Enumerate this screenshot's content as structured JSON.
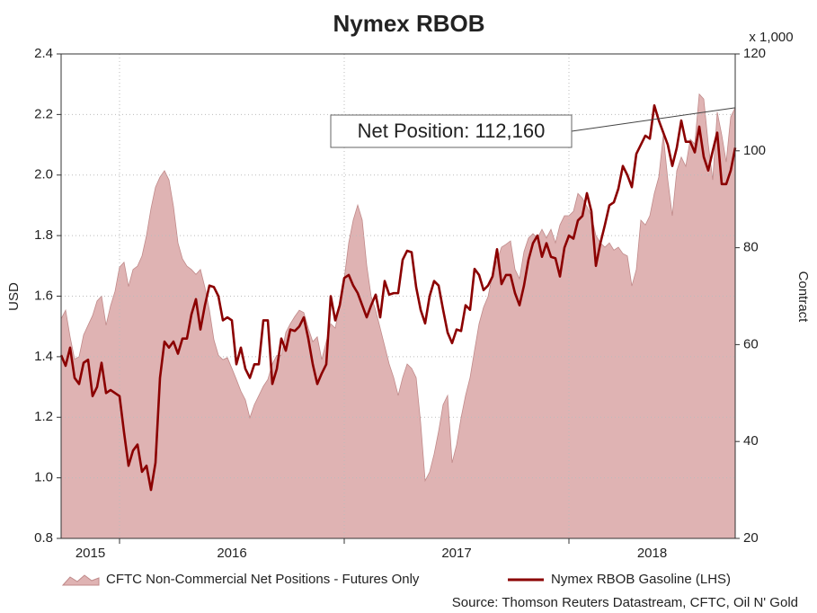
{
  "chart_data": {
    "type": "line",
    "title": "Nymex RBOB",
    "ylabel": "USD",
    "y2label": "Contract",
    "y2unit": "x 1,000",
    "source": "Source: Thomson Reuters Datastream, CFTC, Oil N' Gold",
    "annotation": "Net Position: 112,160",
    "grid": true,
    "xlim": [
      2015.74,
      2018.74
    ],
    "xticks": [
      {
        "value": 2015.87,
        "label": "2015"
      },
      {
        "value": 2016.5,
        "label": "2016"
      },
      {
        "value": 2017.5,
        "label": "2017"
      },
      {
        "value": 2018.37,
        "label": "2018"
      }
    ],
    "xminorticks": [
      2016,
      2017,
      2018
    ],
    "ylim": [
      0.8,
      2.4
    ],
    "yticks": [
      0.8,
      {
        "value": 1,
        "label": "1.0"
      },
      1.2,
      1.4,
      1.6,
      1.8,
      {
        "value": 2,
        "label": "2.0"
      },
      2.2,
      2.4
    ],
    "y2lim": [
      20,
      120
    ],
    "y2ticks": [
      20,
      40,
      60,
      80,
      100,
      120
    ],
    "x": [
      2015.74,
      2015.76,
      2015.78,
      2015.8,
      2015.82,
      2015.84,
      2015.86,
      2015.88,
      2015.9,
      2015.92,
      2015.94,
      2015.96,
      2015.98,
      2016,
      2016.02,
      2016.04,
      2016.06,
      2016.08,
      2016.1,
      2016.12,
      2016.14,
      2016.16,
      2016.18,
      2016.2,
      2016.22,
      2016.24,
      2016.26,
      2016.28,
      2016.3,
      2016.32,
      2016.34,
      2016.36,
      2016.38,
      2016.4,
      2016.42,
      2016.44,
      2016.46,
      2016.48,
      2016.5,
      2016.52,
      2016.54,
      2016.56,
      2016.58,
      2016.6,
      2016.62,
      2016.64,
      2016.66,
      2016.68,
      2016.7,
      2016.72,
      2016.74,
      2016.76,
      2016.78,
      2016.8,
      2016.82,
      2016.84,
      2016.86,
      2016.88,
      2016.9,
      2016.92,
      2016.94,
      2016.96,
      2016.98,
      2017,
      2017.02,
      2017.04,
      2017.06,
      2017.08,
      2017.1,
      2017.12,
      2017.14,
      2017.16,
      2017.18,
      2017.2,
      2017.22,
      2017.24,
      2017.26,
      2017.28,
      2017.3,
      2017.32,
      2017.34,
      2017.36,
      2017.38,
      2017.4,
      2017.42,
      2017.44,
      2017.46,
      2017.48,
      2017.5,
      2017.52,
      2017.54,
      2017.56,
      2017.58,
      2017.6,
      2017.62,
      2017.64,
      2017.66,
      2017.68,
      2017.7,
      2017.72,
      2017.74,
      2017.76,
      2017.78,
      2017.8,
      2017.82,
      2017.84,
      2017.86,
      2017.88,
      2017.9,
      2017.92,
      2017.94,
      2017.96,
      2017.98,
      2018,
      2018.02,
      2018.04,
      2018.06,
      2018.08,
      2018.1,
      2018.12,
      2018.14,
      2018.16,
      2018.18,
      2018.2,
      2018.22,
      2018.24,
      2018.26,
      2018.28,
      2018.3,
      2018.32,
      2018.34,
      2018.36,
      2018.38,
      2018.4,
      2018.42,
      2018.44,
      2018.46,
      2018.48,
      2018.5,
      2018.52,
      2018.54,
      2018.56,
      2018.58,
      2018.6,
      2018.62,
      2018.64,
      2018.66,
      2018.68,
      2018.7,
      2018.72,
      2018.74
    ],
    "series": [
      {
        "name": "CFTC Non-Commercial Net Positions - Futures Only",
        "type": "area",
        "axis": "y2",
        "color": "#dfb3b3",
        "edge": "#c08a8a",
        "values": [
          65.3,
          67.1,
          61.6,
          57,
          57.5,
          62,
          64,
          66,
          69,
          70,
          64,
          68,
          71,
          76,
          77,
          72,
          75.5,
          76.2,
          78.3,
          82.5,
          88.1,
          92.5,
          94.6,
          95.9,
          94,
          88.5,
          81,
          77.7,
          76.2,
          75.5,
          74.5,
          75.5,
          71.8,
          67.1,
          61,
          57.8,
          56.9,
          57.3,
          55.1,
          52.8,
          50.4,
          48.6,
          44.9,
          47.6,
          49.5,
          51.4,
          52.8,
          56,
          57.8,
          57.8,
          62.5,
          64.3,
          65.8,
          67.1,
          66.6,
          63.4,
          60.6,
          61.6,
          56.9,
          60.6,
          64.3,
          63.4,
          68.1,
          73.6,
          81,
          85.7,
          88.8,
          85.7,
          76.4,
          69.9,
          67.1,
          63.4,
          59.7,
          56,
          53.2,
          49.5,
          53.2,
          56,
          55.1,
          53.2,
          43.9,
          31.9,
          33.7,
          37.4,
          42.1,
          47.6,
          49.5,
          35.6,
          39.3,
          44.9,
          49.5,
          53.2,
          58.8,
          64.3,
          67.7,
          69.9,
          74.5,
          77.3,
          80.1,
          80.7,
          81.4,
          75.5,
          73.6,
          79.2,
          82,
          82.9,
          82,
          83.8,
          82,
          83.8,
          81,
          84.7,
          86.6,
          86.6,
          87.5,
          91.2,
          90.2,
          88.5,
          86.6,
          82.5,
          81,
          80.1,
          81,
          79.5,
          80.1,
          78.8,
          78.3,
          72.1,
          75.5,
          85.7,
          84.7,
          86.6,
          91.2,
          94.6,
          103.3,
          94,
          86.6,
          95.9,
          98.7,
          96.8,
          102.4,
          101.4,
          111.7,
          110.7,
          101.4,
          94,
          108,
          103.3,
          97.7,
          107,
          108.9
        ]
      },
      {
        "name": "Nymex RBOB Gasoline (LHS)",
        "type": "line",
        "color": "#8b0000",
        "values": [
          1.405,
          1.37,
          1.43,
          1.33,
          1.31,
          1.38,
          1.39,
          1.27,
          1.3,
          1.38,
          1.28,
          1.29,
          1.28,
          1.27,
          1.15,
          1.04,
          1.09,
          1.11,
          1.02,
          1.04,
          0.96,
          1.05,
          1.33,
          1.45,
          1.43,
          1.45,
          1.41,
          1.46,
          1.46,
          1.54,
          1.59,
          1.49,
          1.57,
          1.635,
          1.63,
          1.6,
          1.52,
          1.53,
          1.52,
          1.375,
          1.43,
          1.36,
          1.33,
          1.375,
          1.375,
          1.52,
          1.52,
          1.31,
          1.36,
          1.46,
          1.42,
          1.49,
          1.485,
          1.5,
          1.53,
          1.46,
          1.375,
          1.31,
          1.345,
          1.375,
          1.6,
          1.52,
          1.57,
          1.66,
          1.67,
          1.635,
          1.61,
          1.57,
          1.53,
          1.57,
          1.605,
          1.53,
          1.65,
          1.605,
          1.61,
          1.61,
          1.72,
          1.75,
          1.745,
          1.63,
          1.555,
          1.51,
          1.6,
          1.65,
          1.635,
          1.555,
          1.48,
          1.445,
          1.49,
          1.485,
          1.57,
          1.555,
          1.69,
          1.67,
          1.62,
          1.635,
          1.665,
          1.755,
          1.64,
          1.67,
          1.67,
          1.61,
          1.57,
          1.635,
          1.72,
          1.775,
          1.8,
          1.73,
          1.775,
          1.73,
          1.725,
          1.665,
          1.76,
          1.8,
          1.79,
          1.85,
          1.865,
          1.94,
          1.88,
          1.7,
          1.775,
          1.835,
          1.9,
          1.91,
          1.955,
          2.03,
          2,
          1.96,
          2.07,
          2.1,
          2.13,
          2.12,
          2.23,
          2.18,
          2.14,
          2.1,
          2.03,
          2.09,
          2.18,
          2.11,
          2.11,
          2.075,
          2.16,
          2.06,
          2.015,
          2.08,
          2.14,
          1.97,
          1.97,
          2.015,
          2.09
        ]
      }
    ]
  }
}
